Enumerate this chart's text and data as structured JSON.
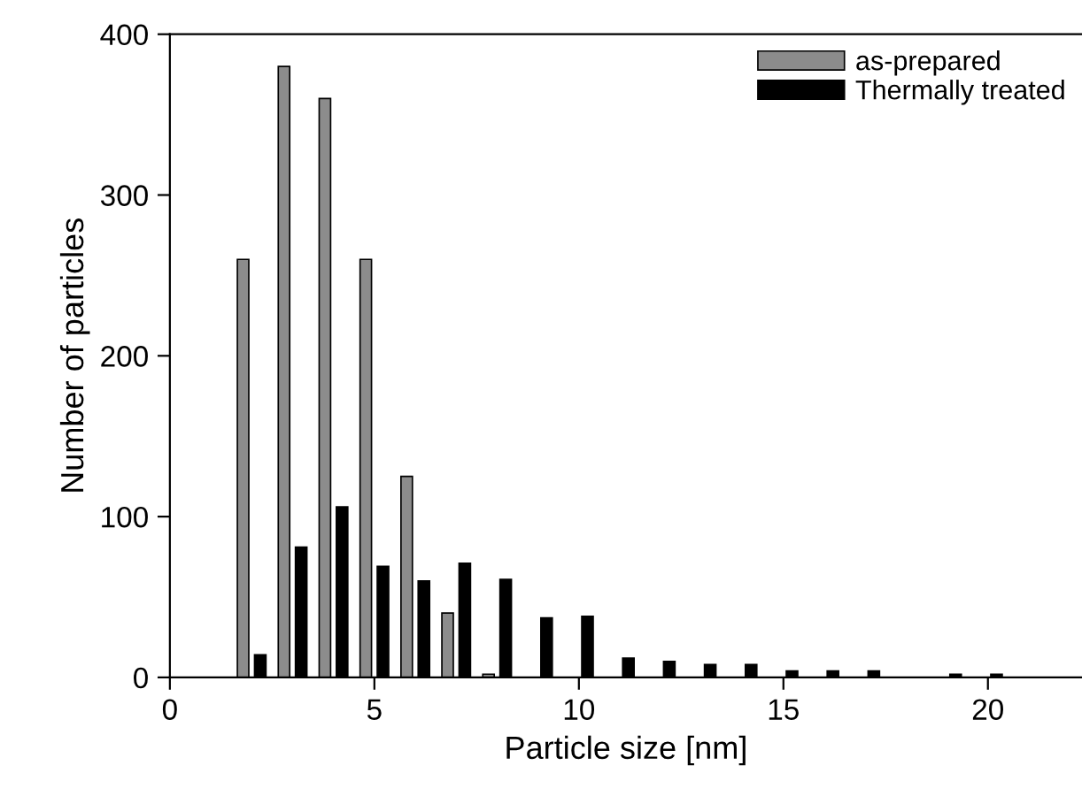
{
  "chart_data": {
    "type": "bar",
    "xlabel": "Particle size [nm]",
    "ylabel": "Number of particles",
    "x": [
      2,
      3,
      4,
      5,
      6,
      7,
      8,
      9,
      10,
      11,
      12,
      13,
      14,
      15,
      16,
      17,
      18,
      19,
      20
    ],
    "series": [
      {
        "name": "as-prepared",
        "color": "#8c8c8c",
        "values": [
          260,
          380,
          360,
          260,
          125,
          40,
          2,
          null,
          null,
          null,
          null,
          null,
          null,
          null,
          null,
          null,
          null,
          null,
          null
        ]
      },
      {
        "name": "Thermally treated",
        "color": "#000000",
        "values": [
          14,
          81,
          106,
          69,
          60,
          71,
          61,
          37,
          38,
          12,
          10,
          8,
          8,
          4,
          4,
          4,
          null,
          2,
          2
        ]
      }
    ],
    "xlim": [
      0,
      22.3
    ],
    "ylim": [
      0,
      400
    ],
    "xticks": [
      0,
      5,
      10,
      15,
      20
    ],
    "yticks": [
      0,
      100,
      200,
      300,
      400
    ],
    "grid": false,
    "legend": "top right"
  }
}
